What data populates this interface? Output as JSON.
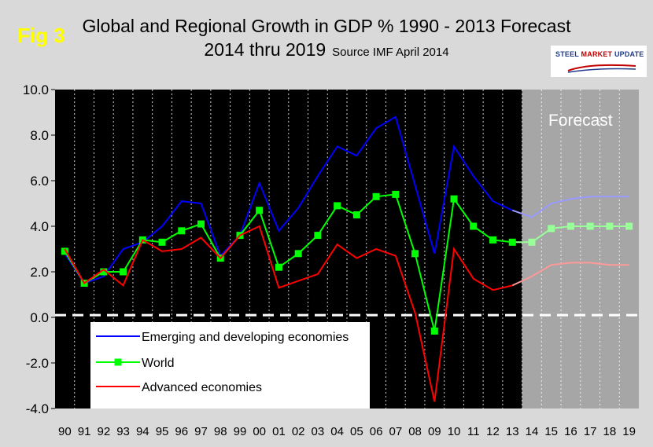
{
  "figure_label": "Fig 3",
  "title_line1": "Global and Regional Growth in GDP % 1990 - 2013 Forecast",
  "title_line2": "2014 thru 2019",
  "source_note": "Source IMF April 2014",
  "logo": {
    "word1": "STEEL",
    "word2": "MARKET",
    "word3": "UPDATE"
  },
  "forecast_label": "Forecast",
  "colors": {
    "emerging": "#0000ff",
    "emerging_forecast": "#9999ff",
    "world": "#00ff00",
    "world_forecast": "#99ff99",
    "advanced": "#ff0000",
    "advanced_forecast": "#ff9999",
    "plot_bg": "#000000",
    "forecast_bg": "#a6a6a6",
    "page_bg": "#d9d9d9"
  },
  "chart_data": {
    "type": "line",
    "title": "Global and Regional Growth in GDP % 1990 - 2013 Forecast 2014 thru 2019",
    "xlabel": "",
    "ylabel": "",
    "categories": [
      "90",
      "91",
      "92",
      "93",
      "94",
      "95",
      "96",
      "97",
      "98",
      "99",
      "00",
      "01",
      "02",
      "03",
      "04",
      "05",
      "06",
      "07",
      "08",
      "09",
      "10",
      "11",
      "12",
      "13",
      "14",
      "15",
      "16",
      "17",
      "18",
      "19"
    ],
    "yticks": [
      "10.0",
      "8.0",
      "6.0",
      "4.0",
      "2.0",
      "0.0",
      "-2.0",
      "-4.0"
    ],
    "ylim": [
      -4,
      10
    ],
    "forecast_start_index": 24,
    "zero_reference_line": 0.1,
    "series": [
      {
        "name": "Emerging and developing economies",
        "key": "emerging",
        "values": [
          2.8,
          1.5,
          1.8,
          3.0,
          3.3,
          4.0,
          5.1,
          5.0,
          2.7,
          3.6,
          5.9,
          3.8,
          4.8,
          6.2,
          7.5,
          7.1,
          8.3,
          8.8,
          5.8,
          2.8,
          7.5,
          6.2,
          5.1,
          4.7,
          4.4,
          5.0,
          5.2,
          5.3,
          5.3,
          5.3
        ]
      },
      {
        "name": "World",
        "key": "world",
        "values": [
          2.9,
          1.5,
          2.0,
          2.0,
          3.4,
          3.3,
          3.8,
          4.1,
          2.6,
          3.6,
          4.7,
          2.2,
          2.8,
          3.6,
          4.9,
          4.5,
          5.3,
          5.4,
          2.8,
          -0.6,
          5.2,
          4.0,
          3.4,
          3.3,
          3.3,
          3.9,
          4.0,
          4.0,
          4.0,
          4.0
        ]
      },
      {
        "name": "Advanced economies",
        "key": "advanced",
        "values": [
          3.0,
          1.5,
          2.1,
          1.4,
          3.4,
          2.9,
          3.0,
          3.5,
          2.6,
          3.6,
          4.0,
          1.3,
          1.6,
          1.9,
          3.2,
          2.6,
          3.0,
          2.7,
          0.2,
          -3.7,
          3.0,
          1.7,
          1.2,
          1.4,
          1.8,
          2.3,
          2.4,
          2.4,
          2.3,
          2.3
        ]
      }
    ],
    "legend_position": "bottom-left inside plot"
  }
}
